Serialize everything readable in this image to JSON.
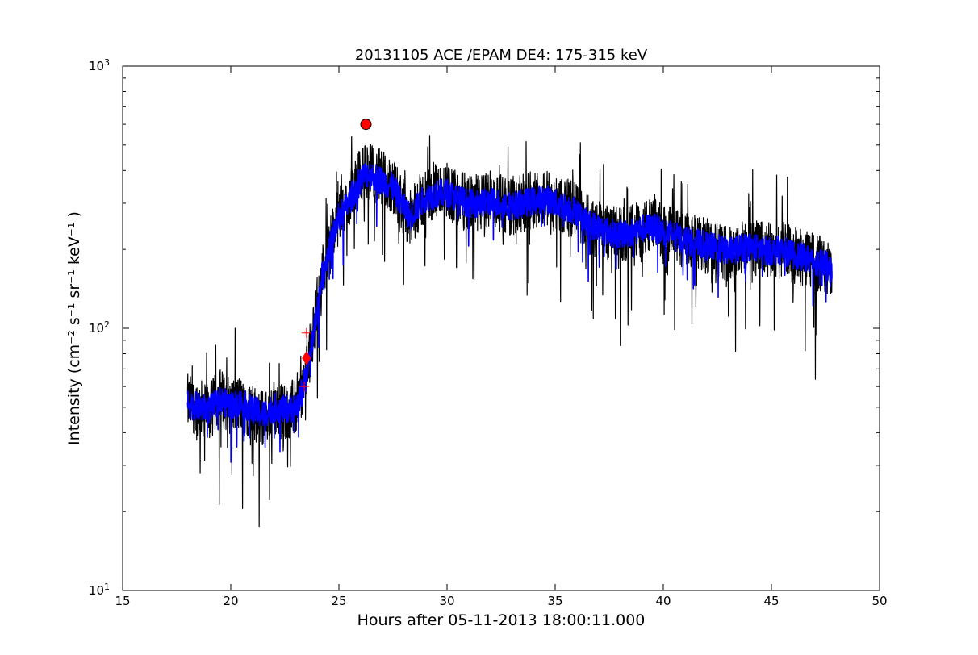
{
  "chart_data": {
    "type": "line",
    "title": "20131105 ACE /EPAM DE4: 175-315 keV",
    "xlabel": "Hours after 05-11-2013 18:00:11.000",
    "ylabel": "Intensity (cm⁻² s⁻¹ sr⁻¹ keV⁻¹ )",
    "xlim": [
      15,
      50
    ],
    "ylim": [
      10,
      1000
    ],
    "yscale": "log",
    "grid": false,
    "x_ticks": [
      "15",
      "20",
      "25",
      "30",
      "35",
      "40",
      "45",
      "50"
    ],
    "y_ticks": [
      {
        "base": "10",
        "exp": "1",
        "value": 10
      },
      {
        "base": "10",
        "exp": "2",
        "value": 100
      },
      {
        "base": "10",
        "exp": "3",
        "value": 1000
      }
    ],
    "series": [
      {
        "color": "#000000",
        "style": "raw",
        "x": [
          18.0,
          18.5,
          19.0,
          19.5,
          20.0,
          20.5,
          21.0,
          21.5,
          22.0,
          22.5,
          23.0,
          23.3,
          23.6,
          23.9,
          24.2,
          24.5,
          24.8,
          25.0,
          25.3,
          25.6,
          26.0,
          26.3,
          26.6,
          27.0,
          27.5,
          28.0,
          28.3,
          28.6,
          29.0,
          29.5,
          30.0,
          30.5,
          31.0,
          31.5,
          32.0,
          32.5,
          33.0,
          33.5,
          34.0,
          34.5,
          35.0,
          35.5,
          36.0,
          36.5,
          37.0,
          37.5,
          38.0,
          38.5,
          39.0,
          39.5,
          40.0,
          40.5,
          41.0,
          41.5,
          42.0,
          42.5,
          43.0,
          43.5,
          44.0,
          44.5,
          45.0,
          45.5,
          46.0,
          46.5,
          47.0,
          47.5,
          47.8
        ],
        "y": [
          52,
          50,
          48,
          55,
          50,
          52,
          48,
          45,
          50,
          48,
          50,
          58,
          75,
          110,
          160,
          200,
          240,
          270,
          290,
          330,
          380,
          400,
          390,
          370,
          350,
          290,
          260,
          290,
          320,
          330,
          340,
          310,
          300,
          300,
          310,
          300,
          290,
          300,
          310,
          320,
          300,
          290,
          280,
          250,
          240,
          230,
          225,
          230,
          240,
          245,
          235,
          225,
          215,
          210,
          205,
          200,
          195,
          200,
          205,
          200,
          195,
          200,
          190,
          185,
          180,
          175,
          160
        ]
      },
      {
        "color": "#0000ff",
        "style": "smoothed",
        "x": [
          18.0,
          18.5,
          19.0,
          19.5,
          20.0,
          20.5,
          21.0,
          21.5,
          22.0,
          22.5,
          23.0,
          23.3,
          23.6,
          23.9,
          24.2,
          24.5,
          24.8,
          25.0,
          25.3,
          25.6,
          26.0,
          26.3,
          26.6,
          27.0,
          27.5,
          28.0,
          28.3,
          28.6,
          29.0,
          29.5,
          30.0,
          30.5,
          31.0,
          31.5,
          32.0,
          32.5,
          33.0,
          33.5,
          34.0,
          34.5,
          35.0,
          35.5,
          36.0,
          36.5,
          37.0,
          37.5,
          38.0,
          38.5,
          39.0,
          39.5,
          40.0,
          40.5,
          41.0,
          41.5,
          42.0,
          42.5,
          43.0,
          43.5,
          44.0,
          44.5,
          45.0,
          45.5,
          46.0,
          46.5,
          47.0,
          47.5,
          47.8
        ],
        "y": [
          52,
          50,
          49,
          53,
          51,
          52,
          49,
          47,
          50,
          49,
          50,
          57,
          73,
          105,
          155,
          195,
          235,
          265,
          285,
          320,
          370,
          390,
          380,
          365,
          345,
          290,
          265,
          290,
          315,
          325,
          330,
          310,
          300,
          300,
          305,
          300,
          292,
          300,
          305,
          315,
          300,
          290,
          280,
          252,
          242,
          232,
          228,
          232,
          240,
          243,
          235,
          226,
          217,
          212,
          207,
          202,
          197,
          201,
          205,
          200,
          196,
          199,
          191,
          186,
          181,
          176,
          162
        ]
      }
    ],
    "markers": [
      {
        "shape": "circle",
        "color": "#ff0000",
        "x": 26.25,
        "y": 600
      },
      {
        "shape": "diamond",
        "color": "#ff0000",
        "x": 23.5,
        "y": 77
      },
      {
        "shape": "plus",
        "color": "#ff0000",
        "x": 23.5,
        "y": 96
      },
      {
        "shape": "plus",
        "color": "#ff0000",
        "x": 23.4,
        "y": 60
      }
    ]
  }
}
